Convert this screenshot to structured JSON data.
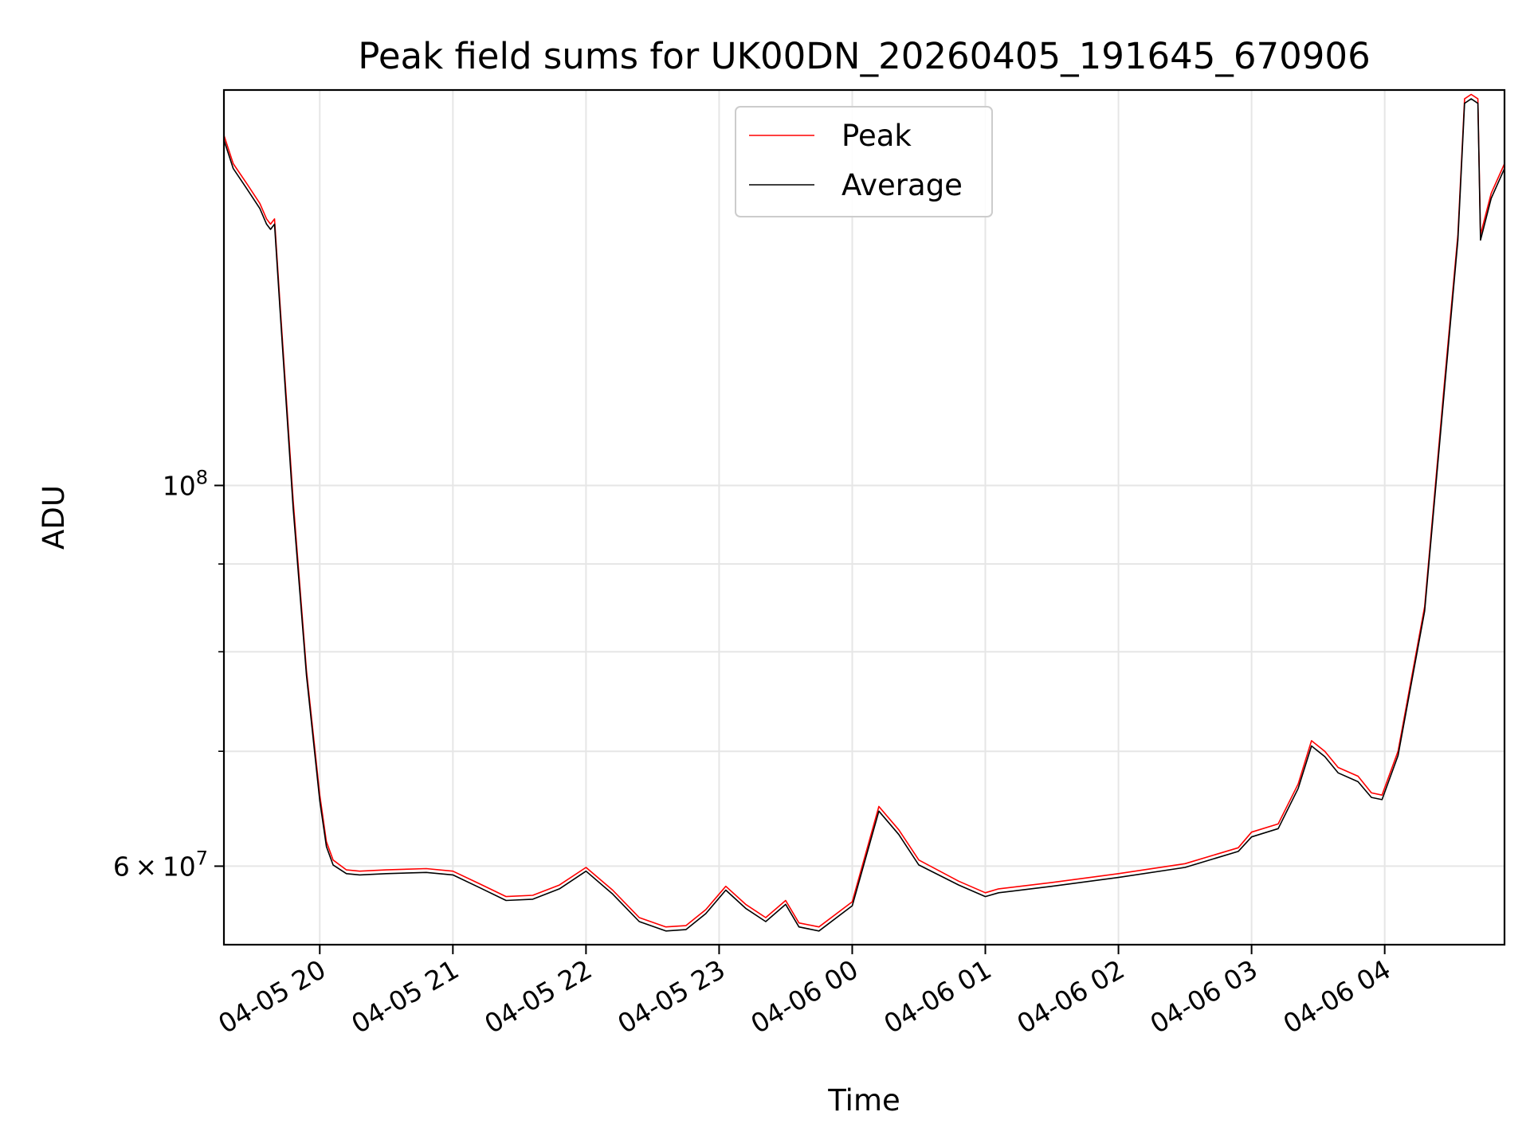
{
  "chart_data": {
    "type": "line",
    "title": "Peak field sums for UK00DN_20260405_191645_670906",
    "xlabel": "Time",
    "ylabel": "ADU",
    "yscale": "log",
    "ylim": [
      54000000,
      170000000
    ],
    "xlim_hours": [
      19.28,
      28.9
    ],
    "grid": true,
    "legend": {
      "location": "upper-center",
      "entries": [
        "Peak",
        "Average"
      ]
    },
    "x_ticks": [
      {
        "hour": 20,
        "label": "04-05 20"
      },
      {
        "hour": 21,
        "label": "04-05 21"
      },
      {
        "hour": 22,
        "label": "04-05 22"
      },
      {
        "hour": 23,
        "label": "04-05 23"
      },
      {
        "hour": 24,
        "label": "04-06 00"
      },
      {
        "hour": 25,
        "label": "04-06 01"
      },
      {
        "hour": 26,
        "label": "04-06 02"
      },
      {
        "hour": 27,
        "label": "04-06 03"
      },
      {
        "hour": 28,
        "label": "04-06 04"
      }
    ],
    "y_major_ticks": [
      {
        "value": 100000000,
        "base": "10",
        "exp": "8"
      },
      {
        "value": 60000000,
        "mantissa": "6",
        "base": "10",
        "exp": "7"
      }
    ],
    "y_minor_ticks": [
      90000000,
      80000000,
      70000000
    ],
    "series": [
      {
        "name": "Peak",
        "color": "#ff0000",
        "x_hours": [
          19.28,
          19.35,
          19.45,
          19.55,
          19.6,
          19.63,
          19.66,
          19.7,
          19.8,
          19.9,
          20.0,
          20.05,
          20.1,
          20.2,
          20.3,
          20.5,
          20.8,
          21.0,
          21.2,
          21.4,
          21.6,
          21.8,
          22.0,
          22.2,
          22.4,
          22.6,
          22.75,
          22.9,
          23.05,
          23.2,
          23.35,
          23.5,
          23.6,
          23.75,
          24.0,
          24.2,
          24.35,
          24.5,
          24.8,
          25.0,
          25.1,
          25.5,
          26.0,
          26.5,
          26.9,
          27.0,
          27.2,
          27.35,
          27.45,
          27.55,
          27.65,
          27.8,
          27.9,
          27.98,
          28.1,
          28.3,
          28.45,
          28.55,
          28.6,
          28.65,
          28.7,
          28.72,
          28.8,
          28.9
        ],
        "y_values": [
          160000000,
          154000000,
          150000000,
          146000000,
          143000000,
          142000000,
          143000000,
          128000000,
          98000000,
          78000000,
          66000000,
          62000000,
          60500000,
          59700000,
          59600000,
          59700000,
          59800000,
          59600000,
          58600000,
          57600000,
          57700000,
          58500000,
          59900000,
          58100000,
          56000000,
          55300000,
          55400000,
          56600000,
          58400000,
          57000000,
          56000000,
          57300000,
          55600000,
          55300000,
          57200000,
          65000000,
          63000000,
          60500000,
          58800000,
          57900000,
          58200000,
          58700000,
          59400000,
          60200000,
          61500000,
          62800000,
          63500000,
          67000000,
          71000000,
          70000000,
          68500000,
          67700000,
          66200000,
          66000000,
          70000000,
          85000000,
          115000000,
          140000000,
          168000000,
          169000000,
          168000000,
          140000000,
          148000000,
          154000000
        ]
      },
      {
        "name": "Average",
        "color": "#000000",
        "x_hours": [
          19.28,
          19.35,
          19.45,
          19.55,
          19.6,
          19.63,
          19.66,
          19.7,
          19.8,
          19.9,
          20.0,
          20.05,
          20.1,
          20.2,
          20.3,
          20.5,
          20.8,
          21.0,
          21.2,
          21.4,
          21.6,
          21.8,
          22.0,
          22.2,
          22.4,
          22.6,
          22.75,
          22.9,
          23.05,
          23.2,
          23.35,
          23.5,
          23.6,
          23.75,
          24.0,
          24.2,
          24.35,
          24.5,
          24.8,
          25.0,
          25.1,
          25.5,
          26.0,
          26.5,
          26.9,
          27.0,
          27.2,
          27.35,
          27.45,
          27.55,
          27.65,
          27.8,
          27.9,
          27.98,
          28.1,
          28.3,
          28.45,
          28.55,
          28.6,
          28.65,
          28.7,
          28.72,
          28.8,
          28.9
        ],
        "y_values": [
          159000000,
          153000000,
          149000000,
          145000000,
          142000000,
          141000000,
          142000000,
          127000000,
          97000000,
          77500000,
          65500000,
          61600000,
          60100000,
          59400000,
          59300000,
          59400000,
          59500000,
          59300000,
          58300000,
          57300000,
          57400000,
          58200000,
          59600000,
          57800000,
          55700000,
          55000000,
          55100000,
          56300000,
          58100000,
          56700000,
          55700000,
          57000000,
          55300000,
          55000000,
          56900000,
          64600000,
          62600000,
          60100000,
          58500000,
          57600000,
          57900000,
          58400000,
          59100000,
          59900000,
          61200000,
          62400000,
          63100000,
          66600000,
          70500000,
          69500000,
          68000000,
          67200000,
          65800000,
          65600000,
          69600000,
          84500000,
          114000000,
          139000000,
          167000000,
          168000000,
          167000000,
          139000000,
          147000000,
          153000000
        ]
      }
    ]
  }
}
